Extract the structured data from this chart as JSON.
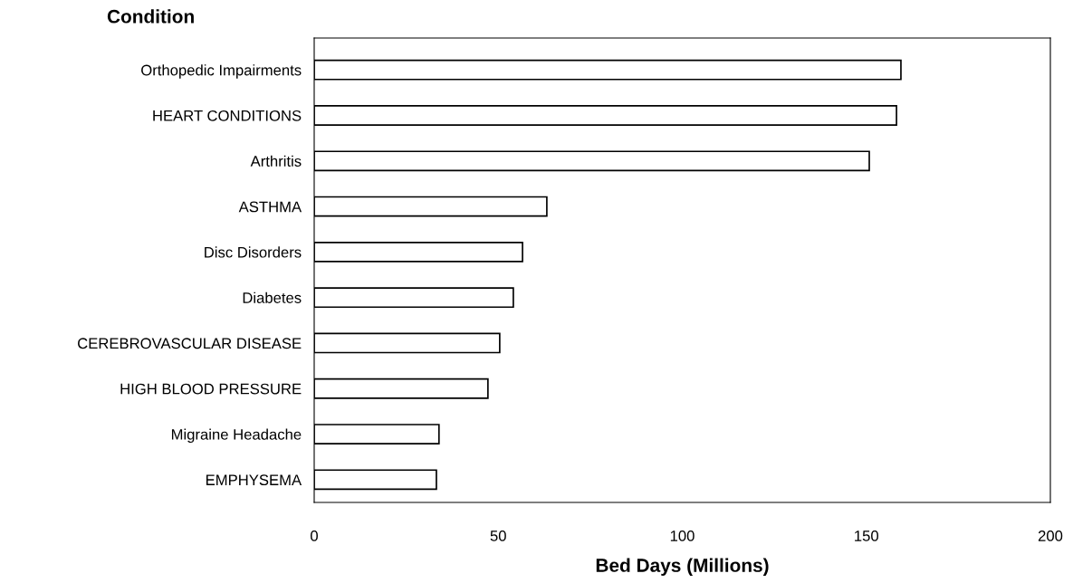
{
  "chart_data": {
    "type": "bar",
    "orientation": "horizontal",
    "ylabel": "Condition",
    "xlabel": "Bed Days (Millions)",
    "categories": [
      "Orthopedic Impairments",
      "HEART CONDITIONS",
      "Arthritis",
      "ASTHMA",
      "Disc Disorders",
      "Diabetes",
      "CEREBROVASCULAR DISEASE",
      "HIGH BLOOD PRESSURE",
      "Migraine Headache",
      "EMPHYSEMA"
    ],
    "values": [
      159.4,
      158.2,
      150.8,
      63.2,
      56.6,
      54.1,
      50.4,
      47.2,
      33.9,
      33.2
    ],
    "color": "#ffffff",
    "xlim": [
      0,
      200
    ],
    "xticks": [
      0,
      50,
      100,
      150,
      200
    ],
    "grid": false,
    "legend": false
  }
}
